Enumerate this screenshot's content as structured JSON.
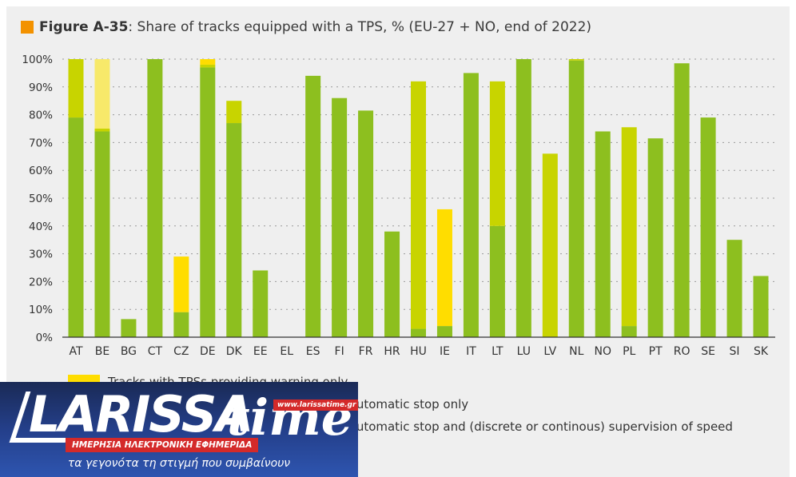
{
  "title": {
    "bold": "Figure A-35",
    "rest": ": Share of tracks equipped with a TPS, % (EU-27 + NO, end of 2022)",
    "accent_color": "#f39200"
  },
  "chart_data": {
    "type": "bar",
    "stacked": true,
    "title": "Figure A-35: Share of tracks equipped with a TPS, % (EU-27 + NO, end of 2022)",
    "xlabel": "",
    "ylabel": "",
    "ylim": [
      0,
      100
    ],
    "yticks": [
      "0%",
      "10%",
      "20%",
      "30%",
      "40%",
      "50%",
      "60%",
      "70%",
      "80%",
      "90%",
      "100%"
    ],
    "grid": true,
    "legend_position": "bottom",
    "categories": [
      "AT",
      "BE",
      "BG",
      "CT",
      "CZ",
      "DE",
      "DK",
      "EE",
      "EL",
      "ES",
      "FI",
      "FR",
      "HR",
      "HU",
      "IE",
      "IT",
      "LT",
      "LU",
      "LV",
      "NL",
      "NO",
      "PL",
      "PT",
      "RO",
      "SE",
      "SI",
      "SK"
    ],
    "series": [
      {
        "name": "Tracks with TPSs providing warning and automatic stop and (discrete or continous) supervision of speed",
        "color": "#8dbf1f",
        "values": [
          79,
          74,
          6.5,
          100,
          9,
          97,
          77,
          24,
          0,
          94,
          86,
          81.5,
          38,
          3,
          4,
          95,
          40,
          100,
          0,
          99.5,
          74,
          4,
          71.5,
          98.5,
          79,
          35,
          22
        ]
      },
      {
        "name": "Tracks with TPSs providing warning and automatic stop only",
        "color": "#c8d400",
        "values": [
          21,
          1,
          0,
          0,
          0,
          1,
          8,
          0,
          0,
          0,
          0,
          0,
          0,
          89,
          0,
          0,
          52,
          0,
          66,
          0.5,
          0,
          71.5,
          0,
          0,
          0,
          0,
          0
        ]
      },
      {
        "name": "Tracks with TPSs providing warning only",
        "color": "#ffdd00",
        "values": [
          0,
          25,
          0,
          0,
          20,
          2,
          0,
          0,
          0,
          0,
          0,
          0,
          0,
          0,
          42,
          0,
          0,
          0,
          0,
          0,
          0,
          0,
          0,
          0,
          0,
          0,
          0
        ]
      }
    ],
    "special_colors": {
      "BE_warning_only": "#f7e96a"
    }
  },
  "legend": {
    "items": [
      {
        "label": "Tracks with TPSs providing warning only",
        "color": "#ffdd00"
      },
      {
        "label": "Tracks with TPSs providing warning and automatic stop only",
        "color": "#c8d400"
      },
      {
        "label": "Tracks with TPSs providing warning and automatic stop and (discrete or continous) supervision of speed",
        "color": "#8dbf1f"
      }
    ]
  },
  "overlay_logo": {
    "brand": "LARISSA",
    "brand_suffix": "time",
    "url": "www.larissatime.gr",
    "subtitle": "ΗΜΕΡΗΣΙΑ ΗΛΕΚΤΡΟΝΙΚΗ ΕΦΗΜΕΡΙΔΑ",
    "slogan": "τα γεγονότα τη στιγμή που συμβαίνουν"
  }
}
